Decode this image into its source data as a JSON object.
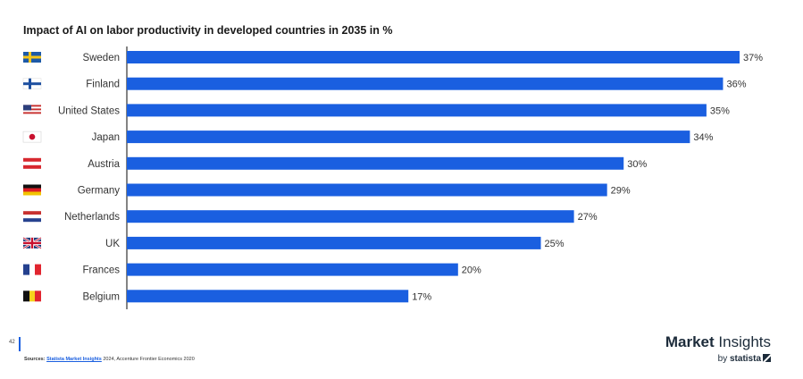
{
  "page": {
    "number": "42",
    "sources_label": "Sources:",
    "sources_link": "Statista Market Insights",
    "sources_rest": " 2024, Accenture Frontier Economics 2020"
  },
  "brand": {
    "word1": "Market",
    "word2": " Insights",
    "by": "by ",
    "statista": "statista"
  },
  "chart_data": {
    "type": "bar",
    "orientation": "horizontal",
    "title": "Impact of AI on labor productivity in developed countries in 2035 in %",
    "categories": [
      "Sweden",
      "Finland",
      "United States",
      "Japan",
      "Austria",
      "Germany",
      "Netherlands",
      "UK",
      "Frances",
      "Belgium"
    ],
    "values": [
      37,
      36,
      35,
      34,
      30,
      29,
      27,
      25,
      20,
      17
    ],
    "value_labels": [
      "37%",
      "36%",
      "35%",
      "34%",
      "30%",
      "29%",
      "27%",
      "25%",
      "20%",
      "17%"
    ],
    "flags": [
      "flag-sweden-icon",
      "flag-finland-icon",
      "flag-united-states-icon",
      "flag-japan-icon",
      "flag-austria-icon",
      "flag-germany-icon",
      "flag-netherlands-icon",
      "flag-uk-icon",
      "flag-france-icon",
      "flag-belgium-icon"
    ],
    "bar_color": "#1a5fe0",
    "xlim": [
      0,
      37
    ],
    "grid": false,
    "legend": "none"
  }
}
